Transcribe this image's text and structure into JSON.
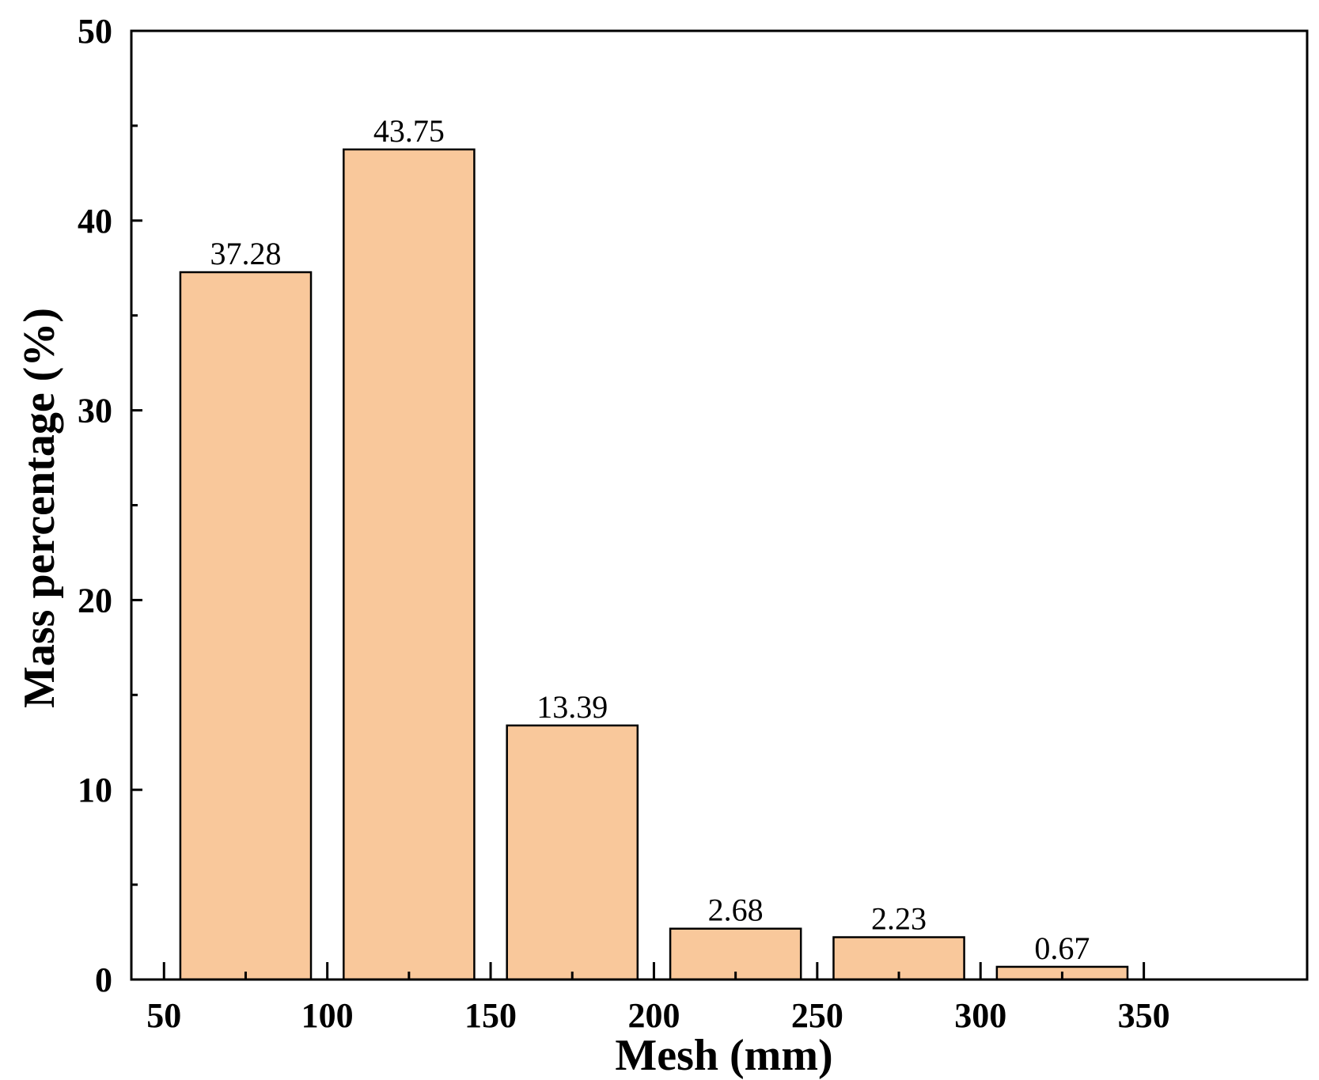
{
  "chart_data": {
    "type": "bar",
    "xlabel": "Mesh (mm)",
    "ylabel": "Mass percentage (%)",
    "xlim": [
      40,
      400
    ],
    "ylim": [
      0,
      50
    ],
    "x_ticks": [
      "50",
      "100",
      "150",
      "200",
      "250",
      "300",
      "350"
    ],
    "y_ticks": [
      "0",
      "10",
      "20",
      "30",
      "40",
      "50"
    ],
    "bars": [
      {
        "x_start": 55,
        "x_end": 95,
        "value": 37.28,
        "label": "37.28"
      },
      {
        "x_start": 105,
        "x_end": 145,
        "value": 43.75,
        "label": "43.75"
      },
      {
        "x_start": 155,
        "x_end": 195,
        "value": 13.39,
        "label": "13.39"
      },
      {
        "x_start": 205,
        "x_end": 245,
        "value": 2.68,
        "label": "2.68"
      },
      {
        "x_start": 255,
        "x_end": 295,
        "value": 2.23,
        "label": "2.23"
      },
      {
        "x_start": 305,
        "x_end": 345,
        "value": 0.67,
        "label": "0.67"
      }
    ],
    "bar_color": "#F9C89B",
    "bar_edge_color": "#000000",
    "grid": false
  }
}
